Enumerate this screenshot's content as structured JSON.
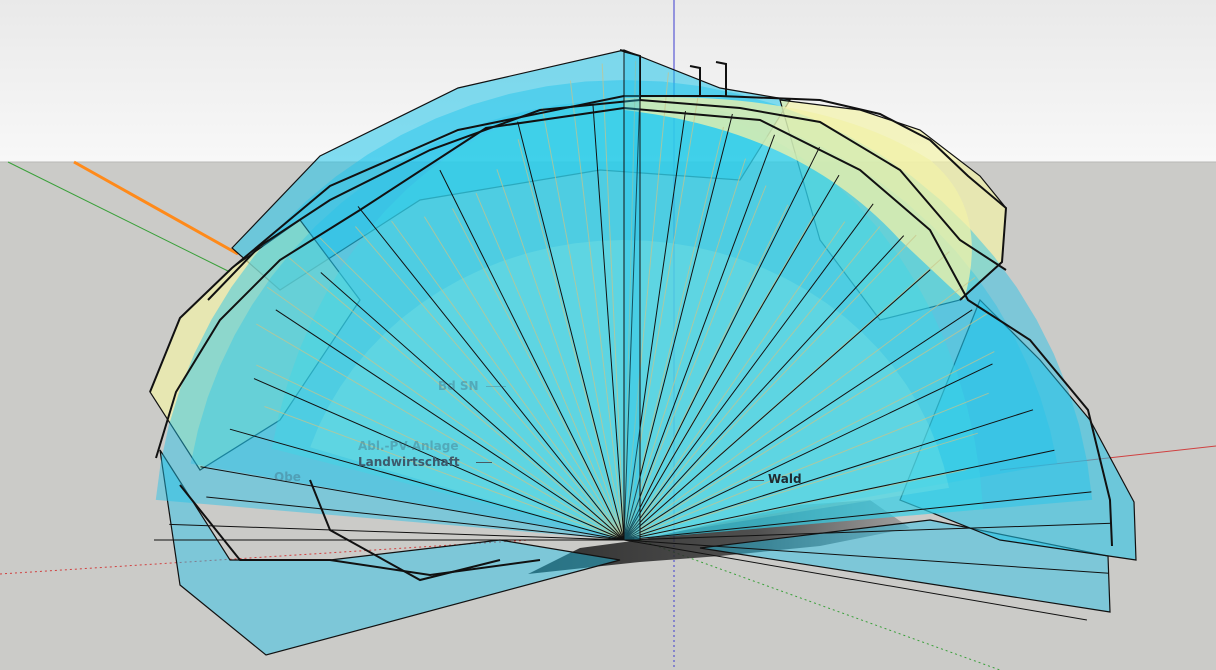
{
  "viewport": {
    "sky_top": "#eaeaea",
    "sky_bottom": "#f7f7f7",
    "ground": "#cbcbc8",
    "axis_red": "#d04040",
    "axis_green": "#3aa03a",
    "axis_blue": "#3c3cd0",
    "highlight_orange": "#ff8a1a",
    "plane_fill": "#1fc4ea",
    "plane_fill_yellow": "#f2f2a8",
    "edge": "#111111"
  },
  "labels": {
    "bdsn": "Bd SN",
    "anlage": "Abl.-PV-Anlage",
    "landwirtschaft": "Landwirtschaft",
    "obe": "Obe",
    "wald": "Wald"
  }
}
